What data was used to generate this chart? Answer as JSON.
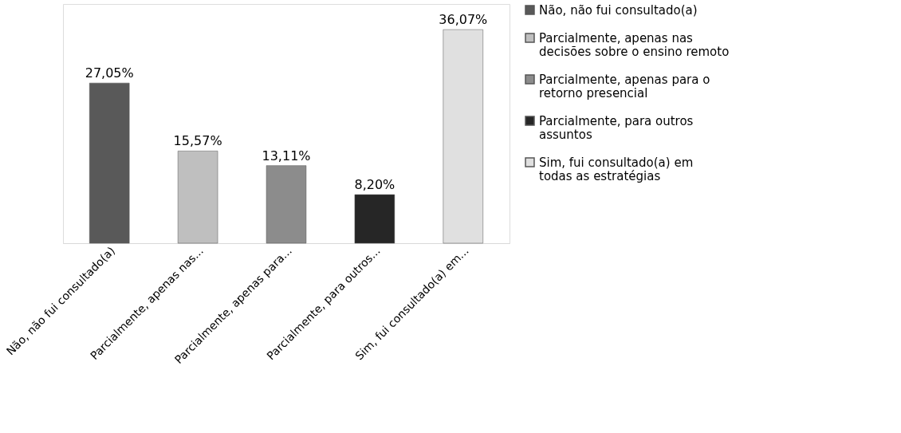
{
  "chart_data": {
    "type": "bar",
    "categories": [
      "Não, não fui consultado(a)",
      "Parcialmente, apenas nas...",
      "Parcialmente, apenas para...",
      "Parcialmente, para outros...",
      "Sim, fui consultado(a) em..."
    ],
    "series": [
      {
        "name": "Não, não fui consultado(a)",
        "color": "#595959",
        "values": [
          27.05,
          null,
          null,
          null,
          null
        ],
        "value_labels": [
          "27,05%",
          null,
          null,
          null,
          null
        ]
      },
      {
        "name": "Parcialmente, apenas nas decisões sobre o ensino remoto",
        "color": "#bfbfbf",
        "values": [
          null,
          15.57,
          null,
          null,
          null
        ],
        "value_labels": [
          null,
          "15,57%",
          null,
          null,
          null
        ]
      },
      {
        "name": "Parcialmente, apenas para o retorno presencial",
        "color": "#8c8c8c",
        "values": [
          null,
          null,
          13.11,
          null,
          null
        ],
        "value_labels": [
          null,
          null,
          "13,11%",
          null,
          null
        ]
      },
      {
        "name": "Parcialmente, para outros assuntos",
        "color": "#262626",
        "values": [
          null,
          null,
          null,
          8.2,
          null
        ],
        "value_labels": [
          null,
          null,
          null,
          "8,20%",
          null
        ]
      },
      {
        "name": "Sim, fui consultado(a) em todas as estratégias",
        "color": "#e0e0e0",
        "values": [
          null,
          null,
          null,
          null,
          36.07
        ],
        "value_labels": [
          null,
          null,
          null,
          null,
          "36,07%"
        ]
      }
    ],
    "legend": "right",
    "grid": false
  }
}
